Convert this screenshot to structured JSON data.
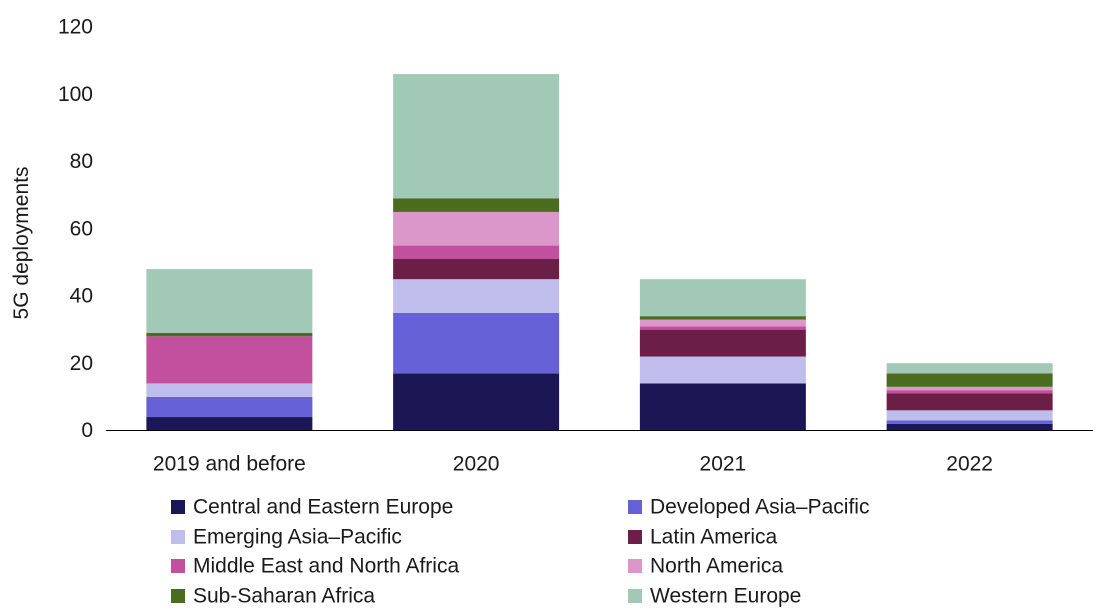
{
  "chart_data": {
    "type": "bar",
    "stacked": true,
    "title": "",
    "xlabel": "",
    "ylabel": "5G deployments",
    "ylim": [
      0,
      120
    ],
    "yticks": [
      0,
      20,
      40,
      60,
      80,
      100,
      120
    ],
    "grid": false,
    "legend_position": "bottom",
    "categories": [
      "2019 and before",
      "2020",
      "2021",
      "2022"
    ],
    "series": [
      {
        "name": "Central and Eastern Europe",
        "color": "#1b1754",
        "values": [
          4,
          17,
          14,
          2
        ]
      },
      {
        "name": "Developed Asia–Pacific",
        "color": "#6661d6",
        "values": [
          6,
          18,
          0,
          1
        ]
      },
      {
        "name": "Emerging Asia–Pacific",
        "color": "#bfbdec",
        "values": [
          4,
          10,
          8,
          3
        ]
      },
      {
        "name": "Latin America",
        "color": "#6b1f47",
        "values": [
          0,
          6,
          8,
          5
        ]
      },
      {
        "name": "Middle East and North Africa",
        "color": "#c2509e",
        "values": [
          14,
          4,
          1,
          1
        ]
      },
      {
        "name": "North America",
        "color": "#dc97ca",
        "values": [
          0,
          10,
          2,
          1
        ]
      },
      {
        "name": "Sub-Saharan Africa",
        "color": "#4b6b1e",
        "values": [
          1,
          4,
          1,
          4
        ]
      },
      {
        "name": "Western Europe",
        "color": "#a2c9b5",
        "values": [
          19,
          37,
          11,
          3
        ]
      }
    ]
  }
}
